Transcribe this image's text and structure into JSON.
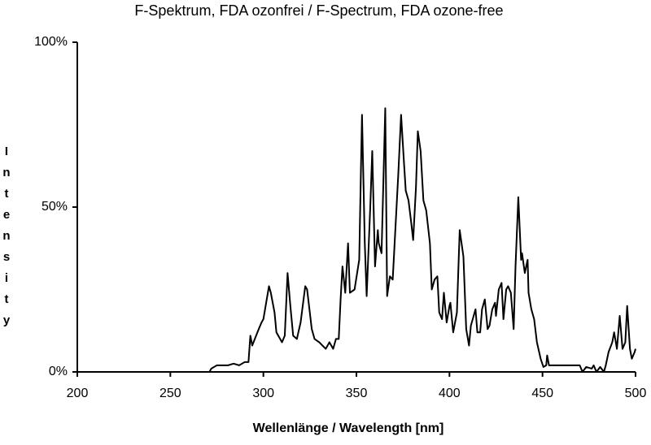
{
  "chart_data": {
    "type": "line",
    "title": "F-Spektrum, FDA ozonfrei / F-Spectrum, FDA ozone-free",
    "x_label": "Wellenlänge / Wavelength [nm]",
    "y_label": "Intensity",
    "xlim": [
      200,
      500
    ],
    "xticks": [
      200,
      250,
      300,
      350,
      400,
      450,
      500
    ],
    "ylim": [
      0,
      100
    ],
    "yticks": [
      {
        "value": 0,
        "label": "0%"
      },
      {
        "value": 50,
        "label": "50%"
      },
      {
        "value": 100,
        "label": "100%"
      }
    ],
    "grid": false,
    "x": [
      200,
      271,
      272,
      275,
      278,
      281,
      284,
      287,
      290,
      292,
      293,
      294,
      297.5,
      299,
      300,
      303,
      304,
      306,
      307,
      310,
      311.5,
      313,
      314.5,
      316,
      318,
      320,
      322.5,
      323.5,
      326,
      327.5,
      330,
      333.5,
      335.5,
      337.5,
      339,
      340.5,
      341.5,
      342.5,
      344,
      345.5,
      346.5,
      349,
      351.5,
      353,
      354.5,
      355.5,
      357.5,
      358.5,
      360,
      361.5,
      362,
      363.5,
      365.5,
      366.5,
      368,
      369.5,
      371,
      372.5,
      374,
      375.5,
      376.5,
      378,
      379.5,
      380.5,
      382,
      383,
      384.5,
      386,
      387.5,
      389.5,
      390.5,
      392,
      393.5,
      394.5,
      396,
      397,
      398.5,
      400,
      400.5,
      402,
      404,
      405.5,
      406.5,
      407.5,
      409,
      410.5,
      411.5,
      413,
      414,
      415,
      416.5,
      417.5,
      419,
      420.5,
      421.5,
      423,
      424.5,
      425,
      426.5,
      428,
      429,
      430.5,
      431.5,
      433,
      434.5,
      435.5,
      437,
      438.5,
      439,
      440.5,
      442,
      442.5,
      444,
      445.5,
      447,
      449,
      450.5,
      452,
      452.5,
      453.5,
      456,
      464.5,
      470,
      471.5,
      473.5,
      476.5,
      477.5,
      479,
      481,
      483,
      484,
      485.5,
      487.5,
      488.5,
      490,
      491.5,
      493,
      494.5,
      495.5,
      497,
      498,
      499.5,
      500
    ],
    "series": [
      {
        "name": "Intensity",
        "color": "#000000",
        "values": [
          0,
          0,
          1,
          2,
          2,
          2,
          2.5,
          2,
          3,
          3,
          11,
          8,
          13,
          15,
          16,
          26,
          24,
          18,
          12,
          9,
          11,
          30,
          20,
          11,
          10,
          15,
          26,
          25,
          13,
          10,
          9,
          7,
          9,
          7,
          10,
          10,
          22,
          32,
          24,
          39,
          24,
          25,
          34,
          78,
          39,
          23,
          51,
          67,
          32,
          43,
          39,
          36,
          80,
          23,
          29,
          28,
          44,
          60,
          78,
          64,
          55,
          52,
          45,
          40,
          56,
          73,
          67,
          52,
          49,
          39,
          25,
          28,
          29,
          18,
          16,
          24,
          15,
          20,
          21,
          12,
          18,
          43,
          39,
          35,
          13,
          8,
          14,
          17,
          19,
          12,
          12,
          19,
          22,
          13,
          14,
          19,
          21,
          17,
          25,
          27,
          16,
          25,
          26,
          24,
          13,
          32,
          53,
          34,
          36,
          30,
          34,
          24,
          19,
          16,
          9,
          4,
          1.5,
          2,
          5,
          2,
          2,
          2,
          2,
          0,
          1.5,
          1,
          2,
          0,
          1.5,
          0,
          2,
          6,
          9,
          12,
          7,
          17,
          7,
          9,
          20,
          7,
          4,
          6,
          7
        ]
      }
    ]
  }
}
